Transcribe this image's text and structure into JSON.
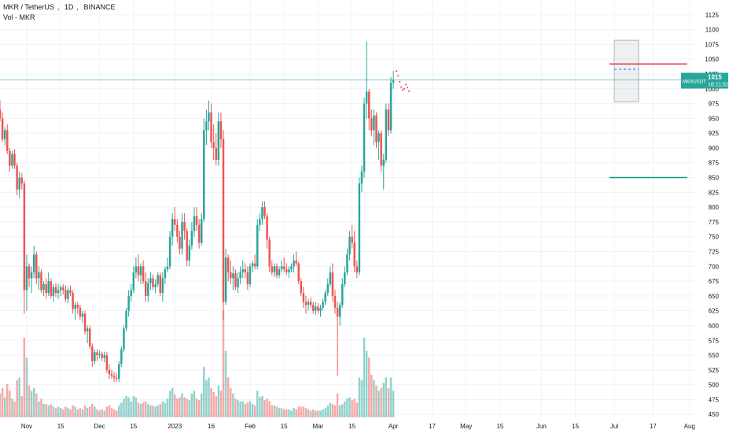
{
  "legend": {
    "symbol_name": "MKR / TetherUS",
    "interval": "1D",
    "exchange": "BINANCE",
    "indicator": "Vol - MKR"
  },
  "price_tag": {
    "symbol": "MKRUSDT",
    "price": "1015",
    "countdown": "16:11:52"
  },
  "colors": {
    "up": "#26a69a",
    "down": "#ef5350",
    "vol_up": "#26a69a",
    "vol_down": "#ef5350",
    "grid": "#f0f3fa",
    "axis_text": "#131722",
    "resistance": "#f23645",
    "support": "#089981",
    "price_line": "#26a69a"
  },
  "chart_data": {
    "type": "candlestick",
    "y_axis": {
      "range": [
        445,
        1150
      ],
      "ticks": [
        450,
        475,
        500,
        525,
        550,
        575,
        600,
        625,
        650,
        675,
        700,
        725,
        750,
        775,
        800,
        825,
        850,
        875,
        900,
        925,
        950,
        975,
        1000,
        1025,
        1050,
        1075,
        1100,
        1125
      ]
    },
    "x_axis": {
      "range": [
        "2022-10-21",
        "2023-08-04"
      ],
      "tick_labels": [
        {
          "date": "2022-11-01",
          "label": "Nov"
        },
        {
          "date": "2022-11-15",
          "label": "15"
        },
        {
          "date": "2022-12-01",
          "label": "Dec"
        },
        {
          "date": "2022-12-15",
          "label": "15"
        },
        {
          "date": "2023-01-01",
          "label": "2023"
        },
        {
          "date": "2023-01-16",
          "label": "16"
        },
        {
          "date": "2023-02-01",
          "label": "Feb"
        },
        {
          "date": "2023-02-15",
          "label": "15"
        },
        {
          "date": "2023-03-01",
          "label": "Mar"
        },
        {
          "date": "2023-03-15",
          "label": "15"
        },
        {
          "date": "2023-04-01",
          "label": "Apr"
        },
        {
          "date": "2023-04-17",
          "label": "17"
        },
        {
          "date": "2023-05-01",
          "label": "May"
        },
        {
          "date": "2023-05-15",
          "label": "15"
        },
        {
          "date": "2023-06-01",
          "label": "Jun"
        },
        {
          "date": "2023-06-15",
          "label": "15"
        },
        {
          "date": "2023-07-01",
          "label": "Jul"
        },
        {
          "date": "2023-07-17",
          "label": "17"
        },
        {
          "date": "2023-08-01",
          "label": "Aug"
        }
      ]
    },
    "start_date": "2022-10-21",
    "candles": [
      [
        965,
        980,
        945,
        950,
        18
      ],
      [
        950,
        960,
        910,
        915,
        22
      ],
      [
        915,
        935,
        905,
        930,
        15
      ],
      [
        930,
        940,
        890,
        895,
        25
      ],
      [
        895,
        900,
        860,
        870,
        20
      ],
      [
        870,
        895,
        865,
        890,
        14
      ],
      [
        890,
        898,
        865,
        870,
        12
      ],
      [
        870,
        875,
        820,
        830,
        28
      ],
      [
        830,
        860,
        815,
        850,
        30
      ],
      [
        850,
        858,
        830,
        840,
        16
      ],
      [
        840,
        845,
        620,
        660,
        60
      ],
      [
        660,
        720,
        625,
        700,
        45
      ],
      [
        700,
        705,
        665,
        680,
        24
      ],
      [
        680,
        700,
        655,
        690,
        20
      ],
      [
        690,
        735,
        680,
        720,
        22
      ],
      [
        720,
        725,
        670,
        680,
        18
      ],
      [
        680,
        700,
        660,
        690,
        12
      ],
      [
        690,
        695,
        655,
        660,
        14
      ],
      [
        660,
        675,
        650,
        670,
        10
      ],
      [
        670,
        680,
        645,
        655,
        10
      ],
      [
        655,
        690,
        650,
        675,
        9
      ],
      [
        675,
        680,
        645,
        650,
        10
      ],
      [
        650,
        670,
        640,
        665,
        8
      ],
      [
        665,
        672,
        648,
        655,
        7
      ],
      [
        655,
        670,
        645,
        660,
        8
      ],
      [
        660,
        668,
        650,
        665,
        7
      ],
      [
        665,
        670,
        652,
        660,
        6
      ],
      [
        660,
        668,
        640,
        645,
        8
      ],
      [
        645,
        665,
        638,
        660,
        7
      ],
      [
        660,
        668,
        650,
        655,
        6
      ],
      [
        655,
        660,
        620,
        628,
        9
      ],
      [
        628,
        640,
        610,
        635,
        8
      ],
      [
        635,
        640,
        620,
        630,
        6
      ],
      [
        630,
        635,
        610,
        615,
        7
      ],
      [
        615,
        625,
        605,
        620,
        6
      ],
      [
        620,
        625,
        585,
        590,
        9
      ],
      [
        590,
        600,
        570,
        595,
        7
      ],
      [
        595,
        600,
        560,
        565,
        8
      ],
      [
        565,
        570,
        530,
        540,
        10
      ],
      [
        540,
        560,
        535,
        555,
        8
      ],
      [
        555,
        560,
        540,
        550,
        6
      ],
      [
        550,
        558,
        545,
        552,
        5
      ],
      [
        552,
        556,
        540,
        545,
        6
      ],
      [
        545,
        556,
        538,
        550,
        5
      ],
      [
        550,
        555,
        520,
        525,
        8
      ],
      [
        525,
        535,
        510,
        518,
        9
      ],
      [
        518,
        525,
        510,
        515,
        7
      ],
      [
        515,
        522,
        505,
        512,
        6
      ],
      [
        512,
        520,
        505,
        510,
        5
      ],
      [
        510,
        540,
        505,
        535,
        9
      ],
      [
        535,
        565,
        530,
        560,
        11
      ],
      [
        560,
        600,
        555,
        595,
        14
      ],
      [
        595,
        630,
        590,
        625,
        16
      ],
      [
        625,
        660,
        615,
        650,
        15
      ],
      [
        650,
        670,
        640,
        660,
        12
      ],
      [
        660,
        700,
        655,
        690,
        16
      ],
      [
        690,
        715,
        680,
        700,
        15
      ],
      [
        700,
        720,
        675,
        685,
        11
      ],
      [
        685,
        705,
        670,
        700,
        10
      ],
      [
        700,
        710,
        670,
        675,
        11
      ],
      [
        675,
        690,
        640,
        650,
        12
      ],
      [
        650,
        680,
        640,
        672,
        10
      ],
      [
        672,
        690,
        660,
        680,
        9
      ],
      [
        680,
        686,
        660,
        665,
        9
      ],
      [
        665,
        678,
        655,
        670,
        8
      ],
      [
        670,
        690,
        665,
        685,
        9
      ],
      [
        685,
        690,
        650,
        655,
        10
      ],
      [
        655,
        690,
        640,
        680,
        12
      ],
      [
        680,
        700,
        670,
        695,
        11
      ],
      [
        695,
        715,
        690,
        700,
        14
      ],
      [
        700,
        760,
        695,
        750,
        20
      ],
      [
        750,
        790,
        735,
        780,
        22
      ],
      [
        780,
        800,
        760,
        770,
        17
      ],
      [
        770,
        780,
        740,
        750,
        14
      ],
      [
        750,
        760,
        720,
        730,
        15
      ],
      [
        730,
        790,
        720,
        775,
        18
      ],
      [
        775,
        790,
        745,
        760,
        15
      ],
      [
        760,
        765,
        700,
        710,
        14
      ],
      [
        710,
        745,
        700,
        735,
        13
      ],
      [
        735,
        775,
        728,
        760,
        18
      ],
      [
        760,
        800,
        750,
        785,
        20
      ],
      [
        785,
        800,
        760,
        770,
        14
      ],
      [
        770,
        780,
        730,
        740,
        13
      ],
      [
        740,
        790,
        735,
        780,
        18
      ],
      [
        780,
        950,
        775,
        930,
        38
      ],
      [
        930,
        965,
        905,
        945,
        28
      ],
      [
        945,
        980,
        930,
        960,
        30
      ],
      [
        960,
        975,
        900,
        910,
        22
      ],
      [
        910,
        940,
        880,
        900,
        19
      ],
      [
        900,
        925,
        870,
        880,
        16
      ],
      [
        880,
        960,
        870,
        945,
        24
      ],
      [
        945,
        960,
        900,
        915,
        20
      ],
      [
        915,
        930,
        610,
        640,
        80
      ],
      [
        640,
        730,
        635,
        715,
        50
      ],
      [
        715,
        720,
        675,
        690,
        30
      ],
      [
        690,
        710,
        670,
        680,
        22
      ],
      [
        680,
        700,
        660,
        688,
        18
      ],
      [
        688,
        695,
        660,
        665,
        14
      ],
      [
        665,
        690,
        655,
        680,
        13
      ],
      [
        680,
        700,
        670,
        690,
        12
      ],
      [
        690,
        710,
        680,
        695,
        12
      ],
      [
        695,
        705,
        680,
        690,
        10
      ],
      [
        690,
        700,
        660,
        670,
        11
      ],
      [
        670,
        705,
        665,
        700,
        12
      ],
      [
        700,
        710,
        690,
        705,
        10
      ],
      [
        705,
        720,
        695,
        700,
        9
      ],
      [
        700,
        780,
        695,
        770,
        20
      ],
      [
        770,
        790,
        760,
        780,
        15
      ],
      [
        780,
        810,
        770,
        800,
        16
      ],
      [
        800,
        810,
        780,
        785,
        13
      ],
      [
        785,
        790,
        730,
        745,
        14
      ],
      [
        745,
        750,
        690,
        700,
        12
      ],
      [
        700,
        710,
        685,
        690,
        9
      ],
      [
        690,
        705,
        682,
        700,
        9
      ],
      [
        700,
        705,
        680,
        685,
        8
      ],
      [
        685,
        700,
        680,
        695,
        7
      ],
      [
        695,
        710,
        690,
        700,
        7
      ],
      [
        700,
        715,
        690,
        695,
        6
      ],
      [
        695,
        705,
        685,
        690,
        6
      ],
      [
        690,
        700,
        680,
        695,
        6
      ],
      [
        695,
        705,
        690,
        700,
        5
      ],
      [
        700,
        720,
        690,
        710,
        7
      ],
      [
        710,
        725,
        700,
        705,
        6
      ],
      [
        705,
        708,
        670,
        675,
        8
      ],
      [
        675,
        680,
        650,
        655,
        8
      ],
      [
        655,
        665,
        630,
        640,
        8
      ],
      [
        640,
        650,
        620,
        635,
        7
      ],
      [
        635,
        645,
        625,
        640,
        6
      ],
      [
        640,
        648,
        630,
        635,
        5
      ],
      [
        635,
        640,
        620,
        625,
        6
      ],
      [
        625,
        640,
        618,
        632,
        5
      ],
      [
        632,
        638,
        620,
        625,
        5
      ],
      [
        625,
        635,
        615,
        630,
        5
      ],
      [
        630,
        645,
        625,
        640,
        6
      ],
      [
        640,
        660,
        635,
        655,
        7
      ],
      [
        655,
        680,
        650,
        670,
        9
      ],
      [
        670,
        700,
        665,
        690,
        11
      ],
      [
        690,
        705,
        640,
        650,
        10
      ],
      [
        650,
        660,
        620,
        630,
        9
      ],
      [
        630,
        640,
        515,
        615,
        18
      ],
      [
        615,
        640,
        600,
        635,
        9
      ],
      [
        635,
        680,
        630,
        670,
        10
      ],
      [
        670,
        700,
        665,
        690,
        12
      ],
      [
        690,
        730,
        685,
        720,
        14
      ],
      [
        720,
        760,
        710,
        750,
        15
      ],
      [
        750,
        770,
        730,
        740,
        13
      ],
      [
        740,
        760,
        690,
        700,
        14
      ],
      [
        700,
        710,
        680,
        690,
        11
      ],
      [
        690,
        850,
        685,
        840,
        30
      ],
      [
        840,
        870,
        825,
        860,
        28
      ],
      [
        860,
        985,
        850,
        975,
        60
      ],
      [
        975,
        1080,
        950,
        995,
        50
      ],
      [
        995,
        1000,
        930,
        950,
        45
      ],
      [
        950,
        965,
        920,
        930,
        32
      ],
      [
        930,
        965,
        905,
        955,
        28
      ],
      [
        955,
        960,
        900,
        910,
        24
      ],
      [
        910,
        930,
        880,
        925,
        20
      ],
      [
        925,
        930,
        860,
        870,
        22
      ],
      [
        870,
        890,
        830,
        880,
        26
      ],
      [
        880,
        975,
        875,
        965,
        30
      ],
      [
        965,
        975,
        920,
        930,
        22
      ],
      [
        930,
        1020,
        925,
        1010,
        30
      ],
      [
        1010,
        1030,
        1000,
        1015,
        20
      ]
    ],
    "levels": [
      {
        "name": "resistance",
        "value": 1042,
        "from": "2023-06-29",
        "to": "2023-07-31"
      },
      {
        "name": "support",
        "value": 850,
        "from": "2023-06-29",
        "to": "2023-07-31"
      },
      {
        "name": "current",
        "value": 1015
      }
    ],
    "zone": {
      "from": "2023-07-01",
      "to": "2023-07-11",
      "top": 1082,
      "bottom": 978,
      "mid": 1033
    }
  }
}
